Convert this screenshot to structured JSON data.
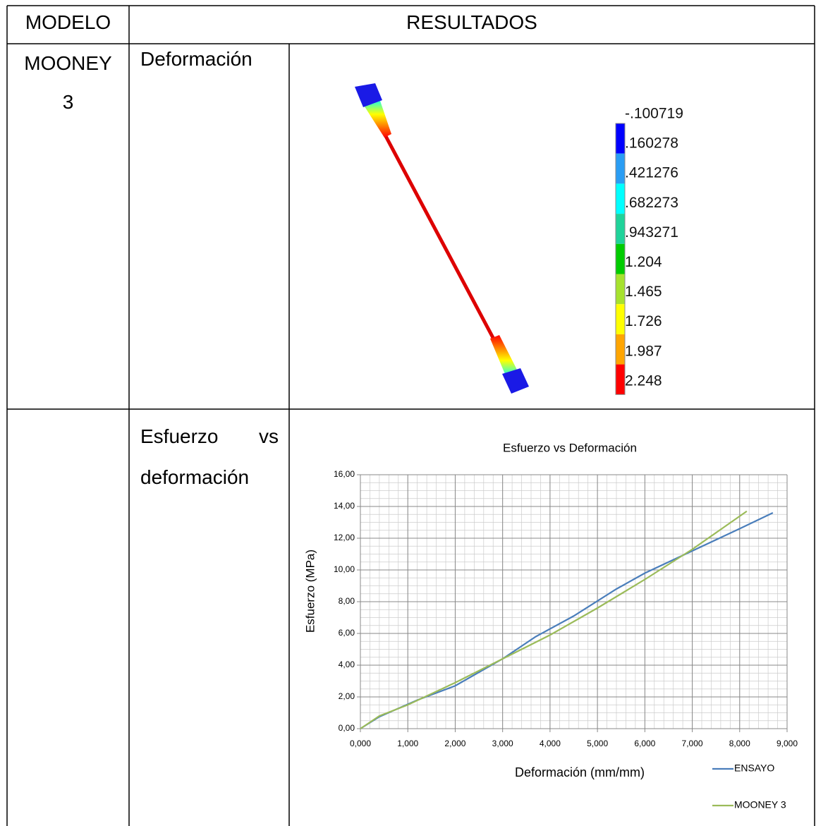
{
  "table": {
    "header": [
      "MODELO",
      "RESULTADOS"
    ],
    "model": "MOONEY 3",
    "rows": [
      "Deformación",
      "Esfuerzo vs deformación"
    ]
  },
  "fe_legend": {
    "labels": [
      "-.100719",
      ".160278",
      ".421276",
      ".682273",
      ".943271",
      "1.204",
      "1.465",
      "1.726",
      "1.987",
      "2.248"
    ],
    "colors": [
      "#0000ff",
      "#2a9df4",
      "#00ffff",
      "#1fd39a",
      "#00cc00",
      "#a6e22e",
      "#ffff00",
      "#ffa500",
      "#ff0000"
    ]
  },
  "chart_data": {
    "type": "line",
    "title": "Esfuerzo vs Deformación",
    "x_label": "Deformación (mm/mm)",
    "y_label": "Esfuerzo (MPa)",
    "xlim": [
      0,
      9
    ],
    "ylim": [
      0,
      16
    ],
    "xticks": [
      {
        "value": 0,
        "label": "0,000"
      },
      {
        "value": 1,
        "label": "1,000"
      },
      {
        "value": 2,
        "label": "2,000"
      },
      {
        "value": 3,
        "label": "3,000"
      },
      {
        "value": 4,
        "label": "4,000"
      },
      {
        "value": 5,
        "label": "5,000"
      },
      {
        "value": 6,
        "label": "6,000"
      },
      {
        "value": 7,
        "label": "7,000"
      },
      {
        "value": 8,
        "label": "8,000"
      },
      {
        "value": 9,
        "label": "9,000"
      }
    ],
    "yticks": [
      {
        "value": 0,
        "label": "0,00"
      },
      {
        "value": 2,
        "label": "2,00"
      },
      {
        "value": 4,
        "label": "4,00"
      },
      {
        "value": 6,
        "label": "6,00"
      },
      {
        "value": 8,
        "label": "8,00"
      },
      {
        "value": 10,
        "label": "10,00"
      },
      {
        "value": 12,
        "label": "12,00"
      },
      {
        "value": 14,
        "label": "14,00"
      },
      {
        "value": 16,
        "label": "16,00"
      }
    ],
    "grid": true,
    "series": [
      {
        "name": "ENSAYO",
        "color": "#4a7ebb",
        "x": [
          0,
          0.4,
          1.2,
          2,
          3,
          3.7,
          4.5,
          5.4,
          6,
          7,
          8,
          8.7
        ],
        "values": [
          0,
          0.75,
          1.8,
          2.7,
          4.4,
          5.8,
          7.1,
          8.8,
          9.8,
          11.2,
          12.6,
          13.6
        ]
      },
      {
        "name": "MOONEY 3",
        "color": "#9bbb59",
        "x": [
          0,
          0.4,
          1,
          2,
          3,
          4,
          5,
          6,
          7,
          8.15
        ],
        "values": [
          0,
          0.8,
          1.5,
          2.9,
          4.4,
          5.9,
          7.6,
          9.4,
          11.3,
          13.7
        ]
      }
    ]
  }
}
